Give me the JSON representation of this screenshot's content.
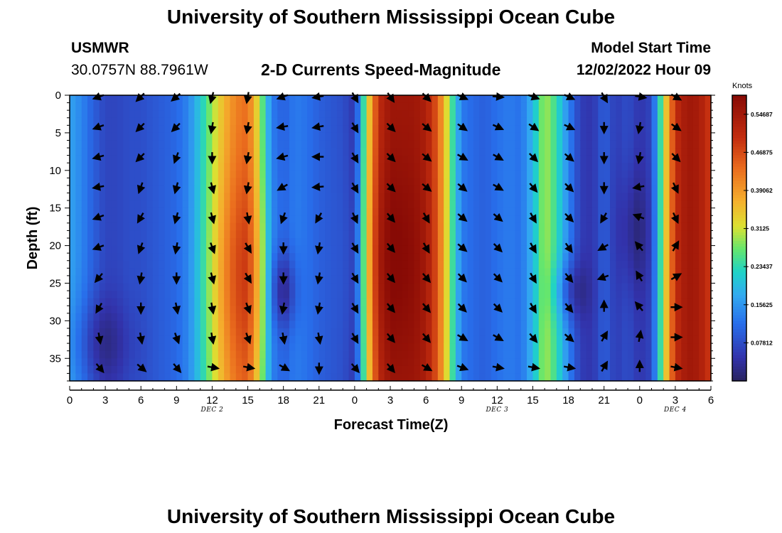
{
  "header": {
    "title": "University of Southern Mississippi Ocean Cube",
    "station_name": "USMWR",
    "station_coords": "30.0757N  88.7961W",
    "subtitle": "2-D Currents Speed-Magnitude",
    "model_start_label": "Model Start Time",
    "model_start_value": "12/02/2022 Hour 09"
  },
  "footer": {
    "title": "University of Southern Mississippi Ocean Cube"
  },
  "colorbar": {
    "unit_label": "Knots",
    "ticks": [
      "0.07812",
      "0.15625",
      "0.23437",
      "0.3125",
      "0.39062",
      "0.46875",
      "0.54687"
    ]
  },
  "chart_data": {
    "type": "heatmap",
    "title": "2-D Currents Speed-Magnitude",
    "xlabel": "Forecast Time(Z)",
    "ylabel": "Depth (ft)",
    "x_tick_labels": [
      "0",
      "3",
      "6",
      "9",
      "12",
      "15",
      "18",
      "21",
      "0",
      "3",
      "6",
      "9",
      "12",
      "15",
      "18",
      "21",
      "0",
      "3",
      "6"
    ],
    "date_labels": [
      {
        "text": "DEC 2",
        "hour": 12
      },
      {
        "text": "DEC 3",
        "hour": 36
      },
      {
        "text": "DEC 4",
        "hour": 51
      }
    ],
    "y_tick_labels": [
      "0",
      "5",
      "10",
      "15",
      "20",
      "25",
      "30",
      "35"
    ],
    "xlim_hours": [
      0,
      54
    ],
    "ylim_ft": [
      0,
      38
    ],
    "speed_range_knots": [
      0,
      0.5859
    ],
    "speed_profile_hours": [
      0,
      1,
      2,
      3,
      4,
      5,
      6,
      7,
      8,
      9,
      10,
      11,
      12,
      13,
      14,
      15,
      16,
      17,
      18,
      19,
      20,
      21,
      22,
      23,
      24,
      25,
      26,
      27,
      28,
      29,
      30,
      31,
      32,
      33,
      34,
      35,
      36,
      37,
      38,
      39,
      40,
      41,
      42,
      43,
      44,
      45,
      46,
      47,
      48,
      49,
      50,
      51,
      52,
      53,
      54
    ],
    "speed_profile_knots": [
      0.17,
      0.14,
      0.1,
      0.07,
      0.07,
      0.08,
      0.08,
      0.09,
      0.1,
      0.11,
      0.14,
      0.21,
      0.29,
      0.36,
      0.41,
      0.43,
      0.3,
      0.13,
      0.1,
      0.13,
      0.12,
      0.1,
      0.09,
      0.08,
      0.05,
      0.3,
      0.5,
      0.55,
      0.55,
      0.55,
      0.53,
      0.45,
      0.28,
      0.13,
      0.11,
      0.1,
      0.12,
      0.13,
      0.12,
      0.19,
      0.3,
      0.24,
      0.14,
      0.06,
      0.05,
      0.1,
      0.06,
      0.08,
      0.05,
      0.07,
      0.3,
      0.5,
      0.55,
      0.54,
      0.48
    ],
    "arrow_hours": [
      2.5,
      6,
      9,
      12,
      15,
      18,
      21,
      24,
      27,
      30,
      33,
      36,
      39,
      42,
      45,
      48,
      51
    ],
    "arrow_depths_ft": [
      0,
      4,
      8,
      12,
      16,
      20,
      24,
      28,
      32,
      36
    ],
    "arrow_directions_deg": [
      [
        250,
        225,
        230,
        195,
        190,
        250,
        260,
        150,
        145,
        135,
        115,
        95,
        110,
        115,
        150,
        100,
        120
      ],
      [
        250,
        225,
        225,
        190,
        190,
        260,
        260,
        150,
        135,
        130,
        125,
        115,
        125,
        115,
        180,
        190,
        125
      ],
      [
        255,
        225,
        200,
        180,
        190,
        255,
        270,
        150,
        135,
        130,
        120,
        120,
        135,
        130,
        180,
        190,
        135
      ],
      [
        260,
        200,
        195,
        165,
        190,
        240,
        265,
        150,
        135,
        130,
        130,
        120,
        140,
        135,
        180,
        260,
        155
      ],
      [
        250,
        210,
        195,
        165,
        170,
        200,
        210,
        155,
        140,
        150,
        130,
        130,
        150,
        135,
        210,
        290,
        155
      ],
      [
        250,
        200,
        190,
        160,
        150,
        180,
        190,
        150,
        140,
        150,
        130,
        135,
        150,
        145,
        240,
        320,
        30
      ],
      [
        220,
        190,
        180,
        165,
        150,
        180,
        190,
        150,
        140,
        140,
        135,
        135,
        150,
        140,
        250,
        330,
        60
      ],
      [
        210,
        180,
        170,
        170,
        160,
        190,
        190,
        150,
        140,
        140,
        135,
        135,
        150,
        140,
        0,
        320,
        90
      ],
      [
        170,
        170,
        160,
        170,
        160,
        170,
        170,
        150,
        140,
        140,
        120,
        120,
        140,
        130,
        30,
        10,
        90
      ],
      [
        140,
        130,
        140,
        100,
        100,
        120,
        180,
        140,
        140,
        120,
        110,
        100,
        100,
        100,
        30,
        0,
        100
      ]
    ]
  }
}
